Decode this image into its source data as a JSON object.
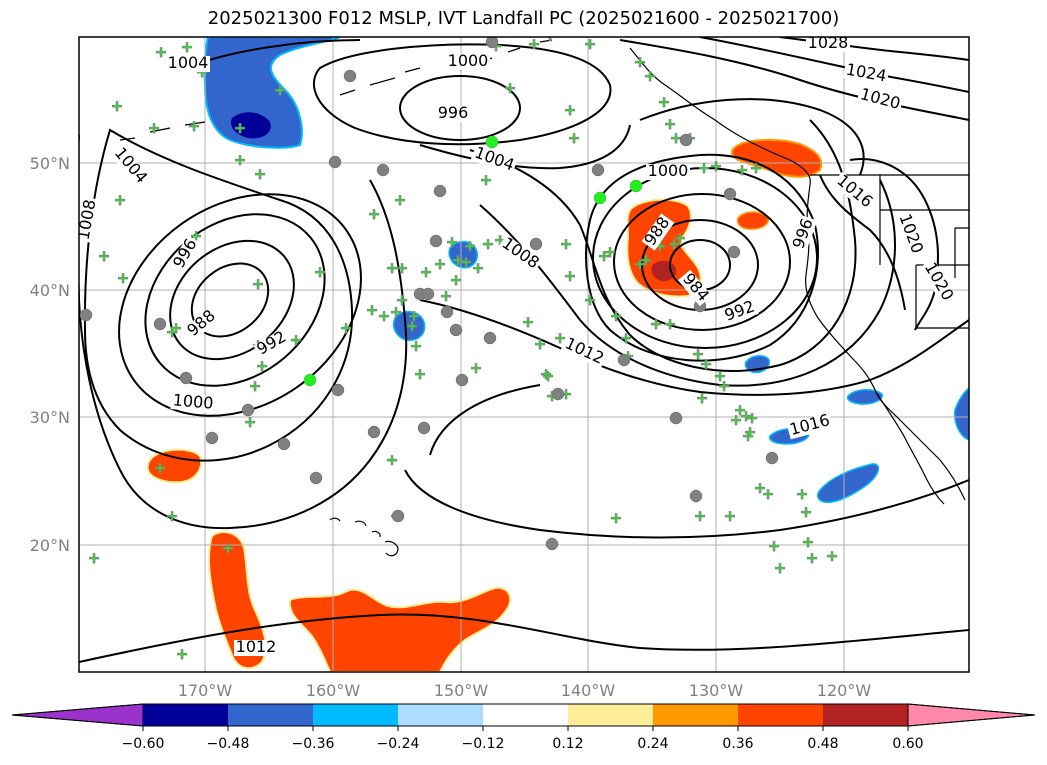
{
  "title": "2025021300 F012 MSLP, IVT Landfall PC (2025021600 - 2025021700)",
  "map": {
    "lat_labels": [
      "50°N",
      "40°N",
      "30°N",
      "20°N"
    ],
    "lon_labels": [
      "170°W",
      "160°W",
      "150°W",
      "140°W",
      "130°W",
      "120°W"
    ],
    "isobar_labels": [
      {
        "text": "1008",
        "angle": -80
      },
      {
        "text": "1004",
        "angle": 50
      },
      {
        "text": "1004",
        "angle": 0
      },
      {
        "text": "1000",
        "angle": 0
      },
      {
        "text": "996",
        "angle": 0
      },
      {
        "text": "1004",
        "angle": 20
      },
      {
        "text": "1000",
        "angle": 0
      },
      {
        "text": "1028",
        "angle": 0
      },
      {
        "text": "1024",
        "angle": 10
      },
      {
        "text": "1020",
        "angle": 15
      },
      {
        "text": "996",
        "angle": -60
      },
      {
        "text": "988",
        "angle": -40
      },
      {
        "text": "992",
        "angle": -30
      },
      {
        "text": "1000",
        "angle": 5
      },
      {
        "text": "1008",
        "angle": 35
      },
      {
        "text": "988",
        "angle": -55
      },
      {
        "text": "984",
        "angle": 50
      },
      {
        "text": "992",
        "angle": -20
      },
      {
        "text": "996",
        "angle": -70
      },
      {
        "text": "1016",
        "angle": 40
      },
      {
        "text": "1020",
        "angle": 70
      },
      {
        "text": "1020",
        "angle": 60
      },
      {
        "text": "1012",
        "angle": 25
      },
      {
        "text": "1016",
        "angle": -15
      },
      {
        "text": "1012",
        "angle": 0
      }
    ]
  },
  "colorbar": {
    "ticks": [
      "−0.60",
      "−0.48",
      "−0.36",
      "−0.24",
      "−0.12",
      "0.12",
      "0.24",
      "0.36",
      "0.48",
      "0.60"
    ],
    "colors": [
      "#9933cc",
      "#000099",
      "#3366cc",
      "#00bbff",
      "#aaddff",
      "#ffffff",
      "#ffee99",
      "#ff9900",
      "#ff4400",
      "#b22222",
      "#ff88aa"
    ]
  },
  "colors": {
    "neg_strong": "#000099",
    "neg_mid": "#3366cc",
    "neg_light": "#00bbff",
    "pos_light": "#ffee99",
    "pos_mid": "#ff9900",
    "pos_strong": "#ff4400",
    "pos_max": "#b22222",
    "marker_green": "#22ee22",
    "marker_gray": "#808080"
  }
}
